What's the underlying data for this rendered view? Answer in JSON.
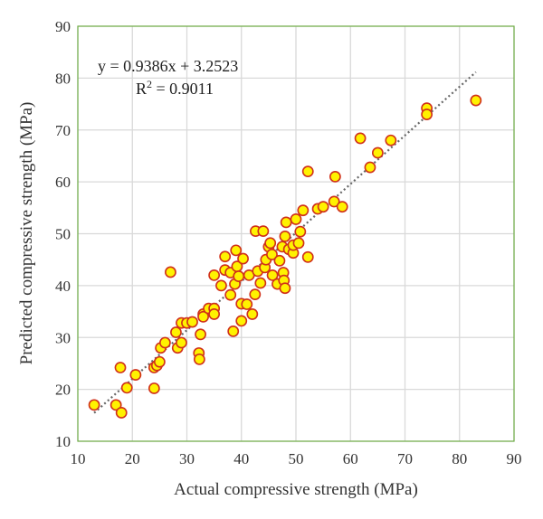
{
  "chart_data": {
    "type": "scatter",
    "xlabel": "Actual compressive strength (MPa)",
    "ylabel": "Predicted compressive strength (MPa)",
    "xlim": [
      10,
      90
    ],
    "ylim": [
      10,
      90
    ],
    "xticks": [
      10,
      20,
      30,
      40,
      50,
      60,
      70,
      80,
      90
    ],
    "yticks": [
      10,
      20,
      30,
      40,
      50,
      60,
      70,
      80,
      90
    ],
    "grid": true,
    "equation": "y = 0.9386x + 3.2523",
    "r2_label": "R",
    "r2_value": " = 0.9011",
    "trendline": {
      "slope": 0.9386,
      "intercept": 3.2523,
      "x_range": [
        13,
        83
      ],
      "style": "dotted",
      "color": "#666666"
    },
    "marker": {
      "fill": "#FFF200",
      "stroke": "#D0301A"
    },
    "frame_color": "#70AD47",
    "points": [
      [
        13,
        17
      ],
      [
        17,
        17
      ],
      [
        17.8,
        24.2
      ],
      [
        18,
        15.5
      ],
      [
        19,
        20.3
      ],
      [
        20.6,
        22.8
      ],
      [
        24,
        24.2
      ],
      [
        24,
        20.2
      ],
      [
        24.5,
        24.6
      ],
      [
        25,
        25.3
      ],
      [
        25.2,
        28
      ],
      [
        26,
        29
      ],
      [
        27,
        42.6
      ],
      [
        28,
        31
      ],
      [
        28.3,
        28
      ],
      [
        29,
        29
      ],
      [
        29,
        32.8
      ],
      [
        30,
        32.8
      ],
      [
        31,
        33
      ],
      [
        32.2,
        27
      ],
      [
        32.3,
        25.8
      ],
      [
        32.5,
        30.6
      ],
      [
        33,
        34.5
      ],
      [
        33,
        34
      ],
      [
        34,
        35.6
      ],
      [
        35,
        35.6
      ],
      [
        35,
        34.5
      ],
      [
        35,
        42
      ],
      [
        36.3,
        40
      ],
      [
        37,
        43
      ],
      [
        37,
        45.6
      ],
      [
        38,
        42.5
      ],
      [
        38,
        38.2
      ],
      [
        38.5,
        31.2
      ],
      [
        39,
        46.8
      ],
      [
        38.8,
        40.3
      ],
      [
        39.2,
        43.7
      ],
      [
        39.5,
        41.8
      ],
      [
        40,
        36.5
      ],
      [
        40.3,
        45.2
      ],
      [
        40,
        33.2
      ],
      [
        41,
        36.4
      ],
      [
        41.4,
        42
      ],
      [
        42,
        34.5
      ],
      [
        42.5,
        38.3
      ],
      [
        42.6,
        50.5
      ],
      [
        43,
        42.8
      ],
      [
        43.5,
        40.5
      ],
      [
        44,
        50.5
      ],
      [
        44.3,
        43.5
      ],
      [
        44.5,
        45
      ],
      [
        45,
        47.5
      ],
      [
        45.3,
        48.2
      ],
      [
        45.6,
        46
      ],
      [
        45.7,
        42
      ],
      [
        46.6,
        40.3
      ],
      [
        47,
        44.8
      ],
      [
        47.5,
        47.5
      ],
      [
        47.7,
        42.5
      ],
      [
        47.8,
        41
      ],
      [
        48,
        39.5
      ],
      [
        48,
        49.5
      ],
      [
        48.2,
        52.2
      ],
      [
        48.7,
        47
      ],
      [
        49.5,
        46.3
      ],
      [
        49.5,
        47.8
      ],
      [
        50,
        52.8
      ],
      [
        50.5,
        48.2
      ],
      [
        50.8,
        50.4
      ],
      [
        51.3,
        54.5
      ],
      [
        52.2,
        45.5
      ],
      [
        52.2,
        62
      ],
      [
        54,
        54.8
      ],
      [
        55,
        55.2
      ],
      [
        57,
        56.2
      ],
      [
        57.2,
        61
      ],
      [
        58.5,
        55.2
      ],
      [
        61.8,
        68.4
      ],
      [
        63.6,
        62.8
      ],
      [
        65,
        65.6
      ],
      [
        67.4,
        68
      ],
      [
        74,
        74.2
      ],
      [
        74,
        73
      ],
      [
        83,
        75.7
      ]
    ]
  }
}
